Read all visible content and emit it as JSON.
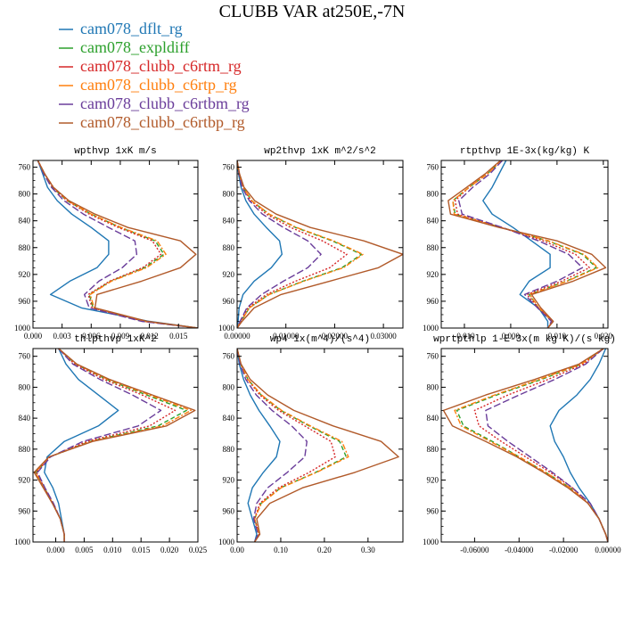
{
  "title": "CLUBB VAR at250E,-7N",
  "legend": [
    {
      "label": "cam078_dflt_rg",
      "color": "#1f77b4",
      "dash": "solid"
    },
    {
      "label": "cam078_expldiff",
      "color": "#2ca02c",
      "dash": "dash"
    },
    {
      "label": "cam078_clubb_c6rtm_rg",
      "color": "#d62728",
      "dash": "dot"
    },
    {
      "label": "cam078_clubb_c6rtp_rg",
      "color": "#ff7f0e",
      "dash": "dashdot"
    },
    {
      "label": "cam078_clubb_c6rtbm_rg",
      "color": "#6a3d9a",
      "dash": "longdash"
    },
    {
      "label": "cam078_clubb_c6rtbp_rg",
      "color": "#b15a2a",
      "dash": "solid"
    }
  ],
  "chart_data": [
    {
      "type": "line",
      "title": "wpthvp  1xK m/s",
      "xlim": [
        0.0,
        0.017
      ],
      "ylim": [
        1000,
        750
      ],
      "xticks": [
        0.0,
        0.003,
        0.006,
        0.009,
        0.012,
        0.015
      ],
      "xticklabels": [
        "0.000",
        "0.003",
        "0.006",
        "0.009",
        "0.012",
        "0.015"
      ],
      "yticks": [
        760,
        800,
        840,
        880,
        920,
        960,
        1000
      ],
      "levels": [
        750,
        770,
        790,
        810,
        830,
        850,
        870,
        890,
        910,
        930,
        950,
        970,
        990,
        1000
      ],
      "series": [
        {
          "values": [
            0.0005,
            0.001,
            0.0015,
            0.0025,
            0.004,
            0.006,
            0.0078,
            0.0078,
            0.0066,
            0.0038,
            0.0018,
            0.005,
            0.012,
            0.017
          ]
        },
        {
          "values": [
            0.0005,
            0.0012,
            0.002,
            0.0035,
            0.006,
            0.009,
            0.0126,
            0.0135,
            0.0115,
            0.008,
            0.0058,
            0.0062,
            0.0115,
            0.017
          ]
        },
        {
          "values": [
            0.0005,
            0.0012,
            0.002,
            0.0035,
            0.0058,
            0.0088,
            0.0123,
            0.0132,
            0.0113,
            0.0079,
            0.0057,
            0.0061,
            0.0114,
            0.017
          ]
        },
        {
          "values": [
            0.0005,
            0.0012,
            0.0021,
            0.0036,
            0.006,
            0.0091,
            0.0128,
            0.0137,
            0.0117,
            0.0081,
            0.0059,
            0.0063,
            0.0116,
            0.017
          ]
        },
        {
          "values": [
            0.0005,
            0.0011,
            0.0019,
            0.0032,
            0.0052,
            0.0078,
            0.0105,
            0.0107,
            0.0092,
            0.0068,
            0.0053,
            0.0058,
            0.0112,
            0.017
          ]
        },
        {
          "values": [
            0.0005,
            0.0012,
            0.0021,
            0.0037,
            0.0064,
            0.0098,
            0.0152,
            0.0168,
            0.0152,
            0.0112,
            0.0066,
            0.0064,
            0.0118,
            0.017
          ]
        }
      ]
    },
    {
      "type": "line",
      "title": "wp2thvp  1xK m^2/s^2",
      "xlim": [
        0.0,
        0.034
      ],
      "ylim": [
        1000,
        750
      ],
      "xticks": [
        0.0,
        0.01,
        0.02,
        0.03
      ],
      "xticklabels": [
        "0.00000",
        "0.01000",
        "0.02000",
        "0.03000"
      ],
      "yticks": [
        760,
        800,
        840,
        880,
        920,
        960,
        1000
      ],
      "levels": [
        750,
        770,
        790,
        810,
        830,
        850,
        870,
        890,
        910,
        930,
        950,
        970,
        990,
        1000
      ],
      "series": [
        {
          "values": [
            0.0,
            0.0003,
            0.0008,
            0.0018,
            0.0035,
            0.006,
            0.0087,
            0.0092,
            0.007,
            0.0035,
            0.0012,
            0.0004,
            0.0002,
            0.0
          ]
        },
        {
          "values": [
            0.0,
            0.0004,
            0.0012,
            0.003,
            0.0065,
            0.012,
            0.0195,
            0.0255,
            0.0215,
            0.0135,
            0.0065,
            0.0025,
            0.0008,
            0.0
          ]
        },
        {
          "values": [
            0.0,
            0.0004,
            0.0011,
            0.0028,
            0.006,
            0.011,
            0.0175,
            0.0225,
            0.019,
            0.012,
            0.006,
            0.0022,
            0.0007,
            0.0
          ]
        },
        {
          "values": [
            0.0,
            0.0004,
            0.0012,
            0.003,
            0.0066,
            0.0122,
            0.0198,
            0.0258,
            0.0218,
            0.0137,
            0.0066,
            0.0025,
            0.0008,
            0.0
          ]
        },
        {
          "values": [
            0.0,
            0.0004,
            0.001,
            0.0025,
            0.0052,
            0.0095,
            0.0145,
            0.0172,
            0.0145,
            0.0095,
            0.005,
            0.002,
            0.0006,
            0.0
          ]
        },
        {
          "values": [
            0.0,
            0.0005,
            0.0014,
            0.0036,
            0.008,
            0.015,
            0.026,
            0.034,
            0.029,
            0.019,
            0.009,
            0.0035,
            0.001,
            0.0
          ]
        }
      ]
    },
    {
      "type": "line",
      "title": "rtpthvp  1E-3x(kg/kg) K",
      "xlim": [
        -0.015,
        0.021
      ],
      "ylim": [
        1000,
        750
      ],
      "xticks": [
        -0.01,
        0.0,
        0.01,
        0.02
      ],
      "xticklabels": [
        "-0.010",
        "0.000",
        "0.010",
        "0.020"
      ],
      "yticks": [
        760,
        800,
        840,
        880,
        920,
        960,
        1000
      ],
      "levels": [
        750,
        770,
        790,
        810,
        830,
        850,
        870,
        890,
        910,
        930,
        950,
        970,
        990,
        1000
      ],
      "series": [
        {
          "values": [
            -0.001,
            -0.0025,
            -0.004,
            -0.006,
            -0.004,
            0.0005,
            0.0045,
            0.0085,
            0.0085,
            0.004,
            0.002,
            0.006,
            0.008,
            0.008
          ]
        },
        {
          "values": [
            -0.002,
            -0.005,
            -0.009,
            -0.0125,
            -0.012,
            -0.002,
            0.008,
            0.0155,
            0.0185,
            0.012,
            0.004,
            0.006,
            0.009,
            0.008
          ]
        },
        {
          "values": [
            -0.002,
            -0.005,
            -0.009,
            -0.012,
            -0.0115,
            -0.002,
            0.007,
            0.014,
            0.017,
            0.011,
            0.0035,
            0.006,
            0.009,
            0.008
          ]
        },
        {
          "values": [
            -0.002,
            -0.005,
            -0.009,
            -0.0125,
            -0.0122,
            -0.0021,
            0.0082,
            0.0158,
            0.0188,
            0.0122,
            0.0041,
            0.0061,
            0.0091,
            0.008
          ]
        },
        {
          "values": [
            -0.0018,
            -0.0045,
            -0.0082,
            -0.0112,
            -0.0105,
            -0.0018,
            0.006,
            0.0125,
            0.0155,
            0.01,
            0.003,
            0.0058,
            0.0088,
            0.008
          ]
        },
        {
          "values": [
            -0.0022,
            -0.0055,
            -0.0095,
            -0.0135,
            -0.013,
            -0.0025,
            0.01,
            0.0175,
            0.0205,
            0.0135,
            0.0045,
            0.0065,
            0.0092,
            0.008
          ]
        }
      ]
    },
    {
      "type": "line",
      "title": "thlpthvp  1xK^2",
      "xlim": [
        -0.004,
        0.025
      ],
      "ylim": [
        1000,
        750
      ],
      "xticks": [
        0.0,
        0.005,
        0.01,
        0.015,
        0.02,
        0.025
      ],
      "xticklabels": [
        "0.000",
        "0.005",
        "0.010",
        "0.015",
        "0.020",
        "0.025"
      ],
      "yticks": [
        760,
        800,
        840,
        880,
        920,
        960,
        1000
      ],
      "levels": [
        750,
        770,
        790,
        810,
        830,
        850,
        870,
        890,
        910,
        930,
        950,
        970,
        990,
        1000
      ],
      "series": [
        {
          "values": [
            0.0005,
            0.0018,
            0.004,
            0.0075,
            0.011,
            0.0075,
            0.0015,
            -0.0015,
            -0.002,
            -0.0005,
            0.0005,
            0.001,
            0.0015,
            0.0015
          ]
        },
        {
          "values": [
            0.0005,
            0.0035,
            0.009,
            0.016,
            0.023,
            0.018,
            0.006,
            -0.001,
            -0.0035,
            -0.002,
            -0.0005,
            0.0008,
            0.0015,
            0.0015
          ]
        },
        {
          "values": [
            0.0005,
            0.0033,
            0.0085,
            0.0152,
            0.021,
            0.0165,
            0.0055,
            -0.001,
            -0.0034,
            -0.002,
            -0.0005,
            0.0008,
            0.0015,
            0.0015
          ]
        },
        {
          "values": [
            0.0005,
            0.0036,
            0.0092,
            0.0165,
            0.0238,
            0.0188,
            0.0062,
            -0.0011,
            -0.0036,
            -0.0021,
            -0.0005,
            0.0008,
            0.0015,
            0.0015
          ]
        },
        {
          "values": [
            0.0005,
            0.003,
            0.0078,
            0.0135,
            0.0185,
            0.0145,
            0.0048,
            -0.0009,
            -0.0032,
            -0.0019,
            -0.0004,
            0.0008,
            0.0015,
            0.0015
          ]
        },
        {
          "values": [
            0.0005,
            0.0037,
            0.0095,
            0.017,
            0.0245,
            0.0195,
            0.0065,
            -0.0012,
            -0.0038,
            -0.0022,
            -0.0006,
            0.0008,
            0.0015,
            0.0015
          ]
        }
      ]
    },
    {
      "type": "line",
      "title": "wp4  1x(m^4)/(s^4)",
      "xlim": [
        0.0,
        0.38
      ],
      "ylim": [
        1000,
        750
      ],
      "xticks": [
        0.0,
        0.1,
        0.2,
        0.3
      ],
      "xticklabels": [
        "0.00",
        "0.10",
        "0.20",
        "0.30"
      ],
      "yticks": [
        760,
        800,
        840,
        880,
        920,
        960,
        1000
      ],
      "levels": [
        750,
        770,
        790,
        810,
        830,
        850,
        870,
        890,
        910,
        930,
        950,
        970,
        990,
        1000
      ],
      "series": [
        {
          "values": [
            0.0,
            0.005,
            0.015,
            0.03,
            0.05,
            0.075,
            0.098,
            0.09,
            0.06,
            0.035,
            0.025,
            0.035,
            0.045,
            0.04
          ]
        },
        {
          "values": [
            0.0,
            0.008,
            0.025,
            0.055,
            0.1,
            0.165,
            0.235,
            0.25,
            0.18,
            0.1,
            0.055,
            0.04,
            0.05,
            0.04
          ]
        },
        {
          "values": [
            0.0,
            0.008,
            0.024,
            0.052,
            0.095,
            0.155,
            0.215,
            0.225,
            0.165,
            0.095,
            0.052,
            0.04,
            0.05,
            0.04
          ]
        },
        {
          "values": [
            0.0,
            0.008,
            0.025,
            0.056,
            0.102,
            0.168,
            0.24,
            0.255,
            0.182,
            0.101,
            0.056,
            0.04,
            0.05,
            0.04
          ]
        },
        {
          "values": [
            0.0,
            0.007,
            0.02,
            0.044,
            0.08,
            0.125,
            0.16,
            0.155,
            0.115,
            0.07,
            0.045,
            0.038,
            0.048,
            0.04
          ]
        },
        {
          "values": [
            0.0,
            0.009,
            0.03,
            0.07,
            0.13,
            0.22,
            0.33,
            0.37,
            0.27,
            0.15,
            0.075,
            0.045,
            0.052,
            0.04
          ]
        }
      ]
    },
    {
      "type": "line",
      "title": "wprtpthlp  1-E-3x(m kg K)/(s kg)",
      "xlim": [
        -0.075,
        0.0
      ],
      "ylim": [
        1000,
        750
      ],
      "xticks": [
        -0.06,
        -0.04,
        -0.02,
        0.0
      ],
      "xticklabels": [
        "-0.06000",
        "-0.04000",
        "-0.02000",
        "0.00000"
      ],
      "yticks": [
        760,
        800,
        840,
        880,
        920,
        960,
        1000
      ],
      "levels": [
        750,
        770,
        790,
        810,
        830,
        850,
        870,
        890,
        910,
        930,
        950,
        970,
        990,
        1000
      ],
      "series": [
        {
          "values": [
            -0.001,
            -0.004,
            -0.008,
            -0.014,
            -0.022,
            -0.026,
            -0.024,
            -0.02,
            -0.017,
            -0.013,
            -0.008,
            -0.004,
            -0.001,
            0.0
          ]
        },
        {
          "values": [
            -0.002,
            -0.012,
            -0.03,
            -0.05,
            -0.068,
            -0.065,
            -0.052,
            -0.04,
            -0.028,
            -0.017,
            -0.009,
            -0.004,
            -0.001,
            0.0
          ]
        },
        {
          "values": [
            -0.002,
            -0.011,
            -0.027,
            -0.045,
            -0.06,
            -0.058,
            -0.048,
            -0.037,
            -0.026,
            -0.016,
            -0.009,
            -0.004,
            -0.001,
            0.0
          ]
        },
        {
          "values": [
            -0.002,
            -0.012,
            -0.031,
            -0.051,
            -0.069,
            -0.066,
            -0.053,
            -0.04,
            -0.028,
            -0.017,
            -0.009,
            -0.004,
            -0.001,
            0.0
          ]
        },
        {
          "values": [
            -0.002,
            -0.01,
            -0.024,
            -0.04,
            -0.055,
            -0.054,
            -0.045,
            -0.035,
            -0.025,
            -0.016,
            -0.008,
            -0.004,
            -0.001,
            0.0
          ]
        },
        {
          "values": [
            -0.002,
            -0.013,
            -0.033,
            -0.055,
            -0.074,
            -0.07,
            -0.055,
            -0.041,
            -0.029,
            -0.018,
            -0.009,
            -0.004,
            -0.001,
            0.0
          ]
        }
      ]
    }
  ]
}
